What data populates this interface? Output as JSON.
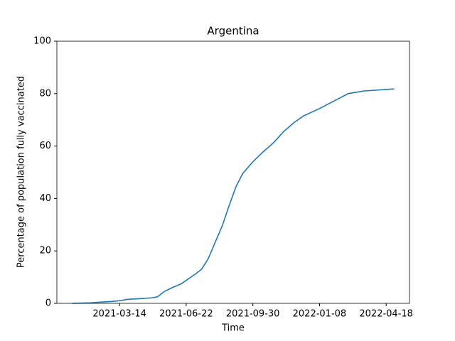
{
  "chart_data": {
    "type": "line",
    "title": "Argentina",
    "xlabel": "Time",
    "ylabel": "Percentage of population fully vaccinated",
    "x": [
      "2021-01-02",
      "2021-01-30",
      "2021-02-15",
      "2021-03-01",
      "2021-03-14",
      "2021-03-25",
      "2021-04-15",
      "2021-05-01",
      "2021-05-10",
      "2021-05-20",
      "2021-06-01",
      "2021-06-15",
      "2021-06-22",
      "2021-07-05",
      "2021-07-15",
      "2021-07-25",
      "2021-08-05",
      "2021-08-15",
      "2021-08-25",
      "2021-09-05",
      "2021-09-15",
      "2021-09-30",
      "2021-10-15",
      "2021-11-01",
      "2021-11-15",
      "2021-12-01",
      "2021-12-15",
      "2022-01-08",
      "2022-02-01",
      "2022-02-20",
      "2022-03-15",
      "2022-04-18",
      "2022-04-30"
    ],
    "series": [
      {
        "name": "Argentina",
        "color": "#1f77b4",
        "values": [
          0,
          0.2,
          0.5,
          0.7,
          1.0,
          1.5,
          1.8,
          2.1,
          2.5,
          4.5,
          6,
          7.5,
          8.8,
          11,
          13,
          17,
          23.6,
          29.5,
          37,
          44.7,
          49.6,
          54,
          57.7,
          61.5,
          65.5,
          69,
          71.5,
          74.3,
          77.5,
          80,
          81,
          81.6,
          81.8
        ]
      }
    ],
    "xlim": [
      "2020-12-10",
      "2022-05-23"
    ],
    "xticks": [
      "2021-03-14",
      "2021-06-22",
      "2021-09-30",
      "2022-01-08",
      "2022-04-18"
    ],
    "ylim": [
      0,
      100
    ],
    "yticks": [
      0,
      20,
      40,
      60,
      80,
      100
    ]
  }
}
